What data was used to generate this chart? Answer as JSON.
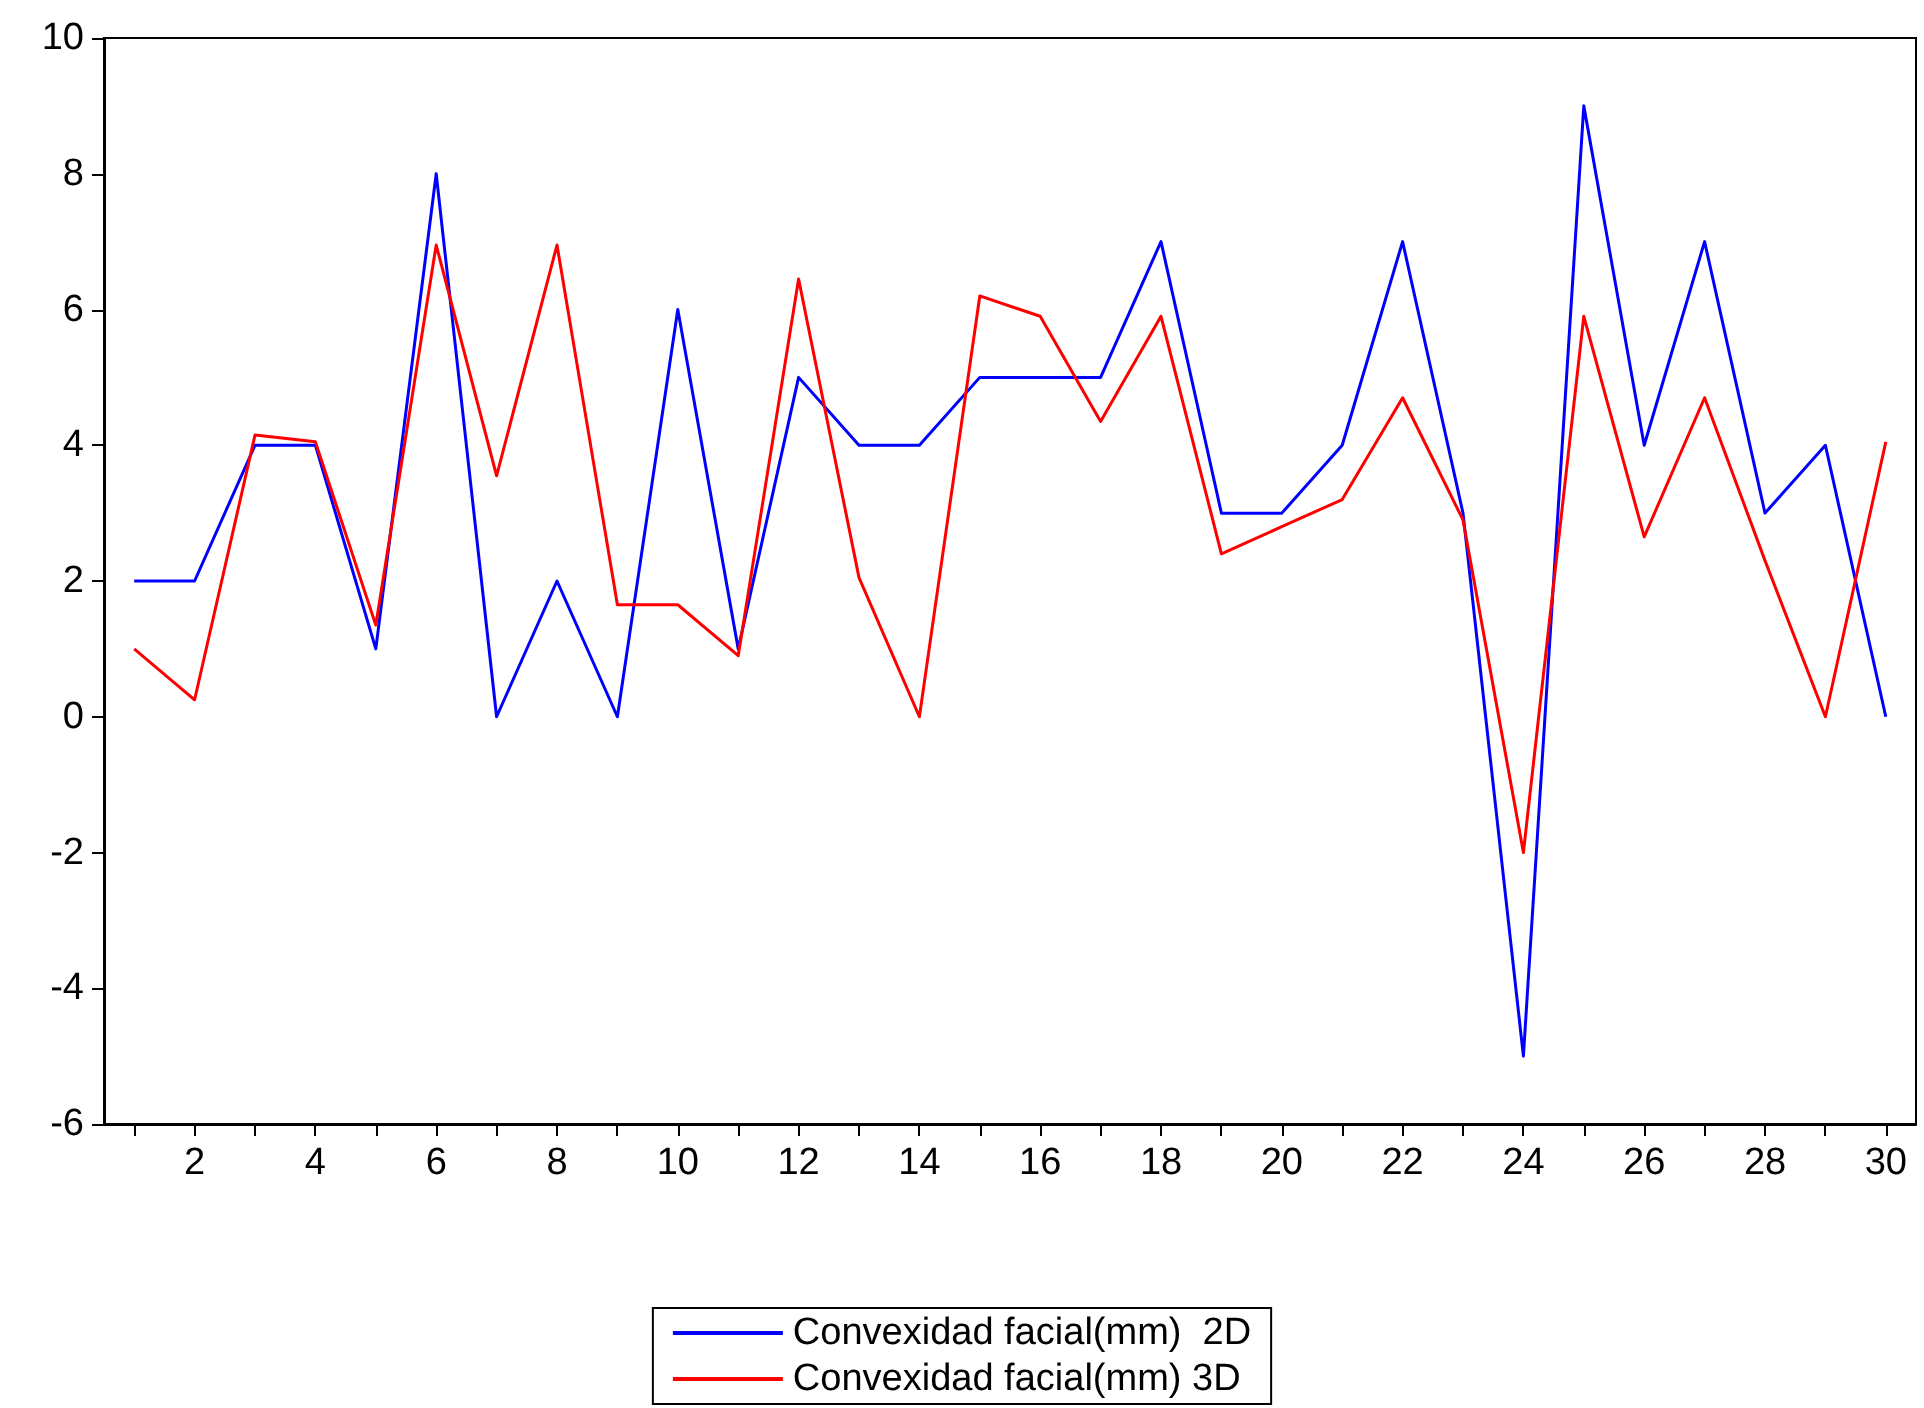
{
  "chart_data": {
    "type": "line",
    "x": [
      1,
      2,
      3,
      4,
      5,
      6,
      7,
      8,
      9,
      10,
      11,
      12,
      13,
      14,
      15,
      16,
      17,
      18,
      19,
      20,
      21,
      22,
      23,
      24,
      25,
      26,
      27,
      28,
      29,
      30
    ],
    "series": [
      {
        "name": "Convexidad facial(mm)  2D",
        "color": "#0000ff",
        "values": [
          2,
          2,
          4,
          4,
          1,
          8,
          0,
          2,
          0,
          6,
          1,
          5,
          4,
          4,
          5,
          5,
          5,
          7,
          3,
          3,
          4,
          7,
          3,
          -5,
          9,
          4,
          7,
          3,
          4,
          0
        ]
      },
      {
        "name": "Convexidad facial(mm) 3D",
        "color": "#ff0000",
        "values": [
          1,
          0.25,
          4.15,
          4.05,
          1.35,
          6.95,
          3.55,
          6.95,
          1.65,
          1.65,
          0.9,
          6.45,
          2.05,
          0,
          6.2,
          5.9,
          4.35,
          5.9,
          2.4,
          2.8,
          3.2,
          4.7,
          2.9,
          -2,
          5.9,
          2.65,
          4.7,
          2.3,
          0,
          4.05
        ]
      }
    ],
    "xlim": [
      0.5,
      30.5
    ],
    "xticks": [
      {
        "value": 1,
        "label": null
      },
      2,
      {
        "value": 3,
        "label": null
      },
      4,
      {
        "value": 5,
        "label": null
      },
      6,
      {
        "value": 7,
        "label": null
      },
      8,
      {
        "value": 9,
        "label": null
      },
      10,
      {
        "value": 11,
        "label": null
      },
      12,
      {
        "value": 13,
        "label": null
      },
      14,
      {
        "value": 15,
        "label": null
      },
      16,
      {
        "value": 17,
        "label": null
      },
      18,
      {
        "value": 19,
        "label": null
      },
      20,
      {
        "value": 21,
        "label": null
      },
      22,
      {
        "value": 23,
        "label": null
      },
      24,
      {
        "value": 25,
        "label": null
      },
      26,
      {
        "value": 27,
        "label": null
      },
      28,
      {
        "value": 29,
        "label": null
      },
      30
    ],
    "ylim": [
      -6,
      10
    ],
    "yticks": [
      -6,
      -4,
      -2,
      0,
      2,
      4,
      6,
      8,
      10
    ],
    "grid": false,
    "legend": "bottom",
    "marker": "none",
    "line_style": "solid"
  }
}
